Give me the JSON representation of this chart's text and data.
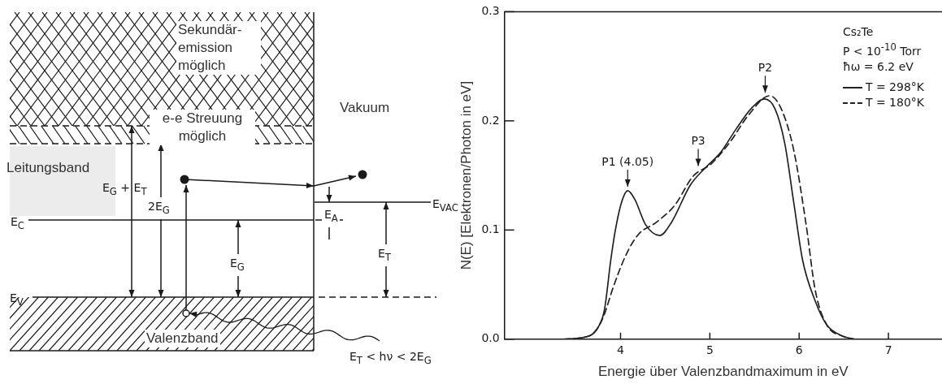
{
  "chart_data": [
    {
      "type": "other",
      "annotations": [
        "Sekundär-emission möglich",
        "e-e Streuung möglich",
        "Vakuum",
        "Leitungsband",
        "E$_{G}$ + E$_{T}$",
        "2E$_{G}$",
        "E$_{C}$",
        "E$_{V}$",
        "E$_{G}$",
        "E$_{A}$",
        "E$_{VAC}$",
        "E$_{T}$",
        "Valenzband",
        "E$_{T}$ < hν < 2E$_{G}$"
      ]
    },
    {
      "type": "line",
      "xlabel": "Energie über Valenzbandmaximum in eV",
      "ylabel": "N(E) [Elektronen/Photon in eV]",
      "xlim": [
        2.7,
        7.6
      ],
      "xticks": [
        4,
        5,
        6,
        7
      ],
      "ylim": [
        0,
        0.3
      ],
      "yticks": [
        {
          "value": 0,
          "label": "0.0"
        },
        {
          "value": 0.1,
          "label": "0.1"
        },
        {
          "value": 0.2,
          "label": "0.2"
        },
        {
          "value": 0.3,
          "label": "0.3"
        }
      ],
      "marker": "none",
      "legend": "top right",
      "series": [
        {
          "name": "T = 298°K",
          "color": "#222222",
          "line_style": "solid",
          "x": [
            3.36,
            3.65,
            3.75,
            3.82,
            3.89,
            3.94,
            4.01,
            4.08,
            4.16,
            4.28,
            4.44,
            4.57,
            4.78,
            4.95,
            5.12,
            5.29,
            5.46,
            5.61,
            5.73,
            5.84,
            5.94,
            6.04,
            6.18,
            6.31,
            6.48,
            6.62
          ],
          "values": [
            0,
            0.003,
            0.011,
            0.027,
            0.072,
            0.099,
            0.125,
            0.136,
            0.128,
            0.105,
            0.095,
            0.107,
            0.141,
            0.157,
            0.171,
            0.192,
            0.211,
            0.22,
            0.211,
            0.179,
            0.125,
            0.072,
            0.035,
            0.013,
            0.003,
            0
          ]
        },
        {
          "name": "T = 180°K",
          "color": "#222222",
          "line_style": "dashed",
          "x": [
            3.36,
            3.65,
            3.75,
            3.82,
            3.92,
            4.06,
            4.2,
            4.4,
            4.61,
            4.81,
            5.02,
            5.23,
            5.43,
            5.67,
            5.8,
            5.94,
            6.08,
            6.18,
            6.31,
            6.48,
            6.62
          ],
          "values": [
            0,
            0.003,
            0.011,
            0.023,
            0.048,
            0.077,
            0.096,
            0.107,
            0.123,
            0.149,
            0.161,
            0.181,
            0.205,
            0.223,
            0.211,
            0.173,
            0.104,
            0.045,
            0.013,
            0.003,
            0
          ]
        }
      ],
      "annotations": [
        "Cs₂Te",
        "P < 10$^{-10}$ Torr",
        "ħω = 6.2 eV",
        {
          "text": "P1 (4.05)",
          "x": 4.08,
          "y": 0.136
        },
        {
          "text": "P3",
          "x": 4.87,
          "y": 0.155
        },
        {
          "text": "P2",
          "x": 5.62,
          "y": 0.222
        }
      ]
    }
  ]
}
